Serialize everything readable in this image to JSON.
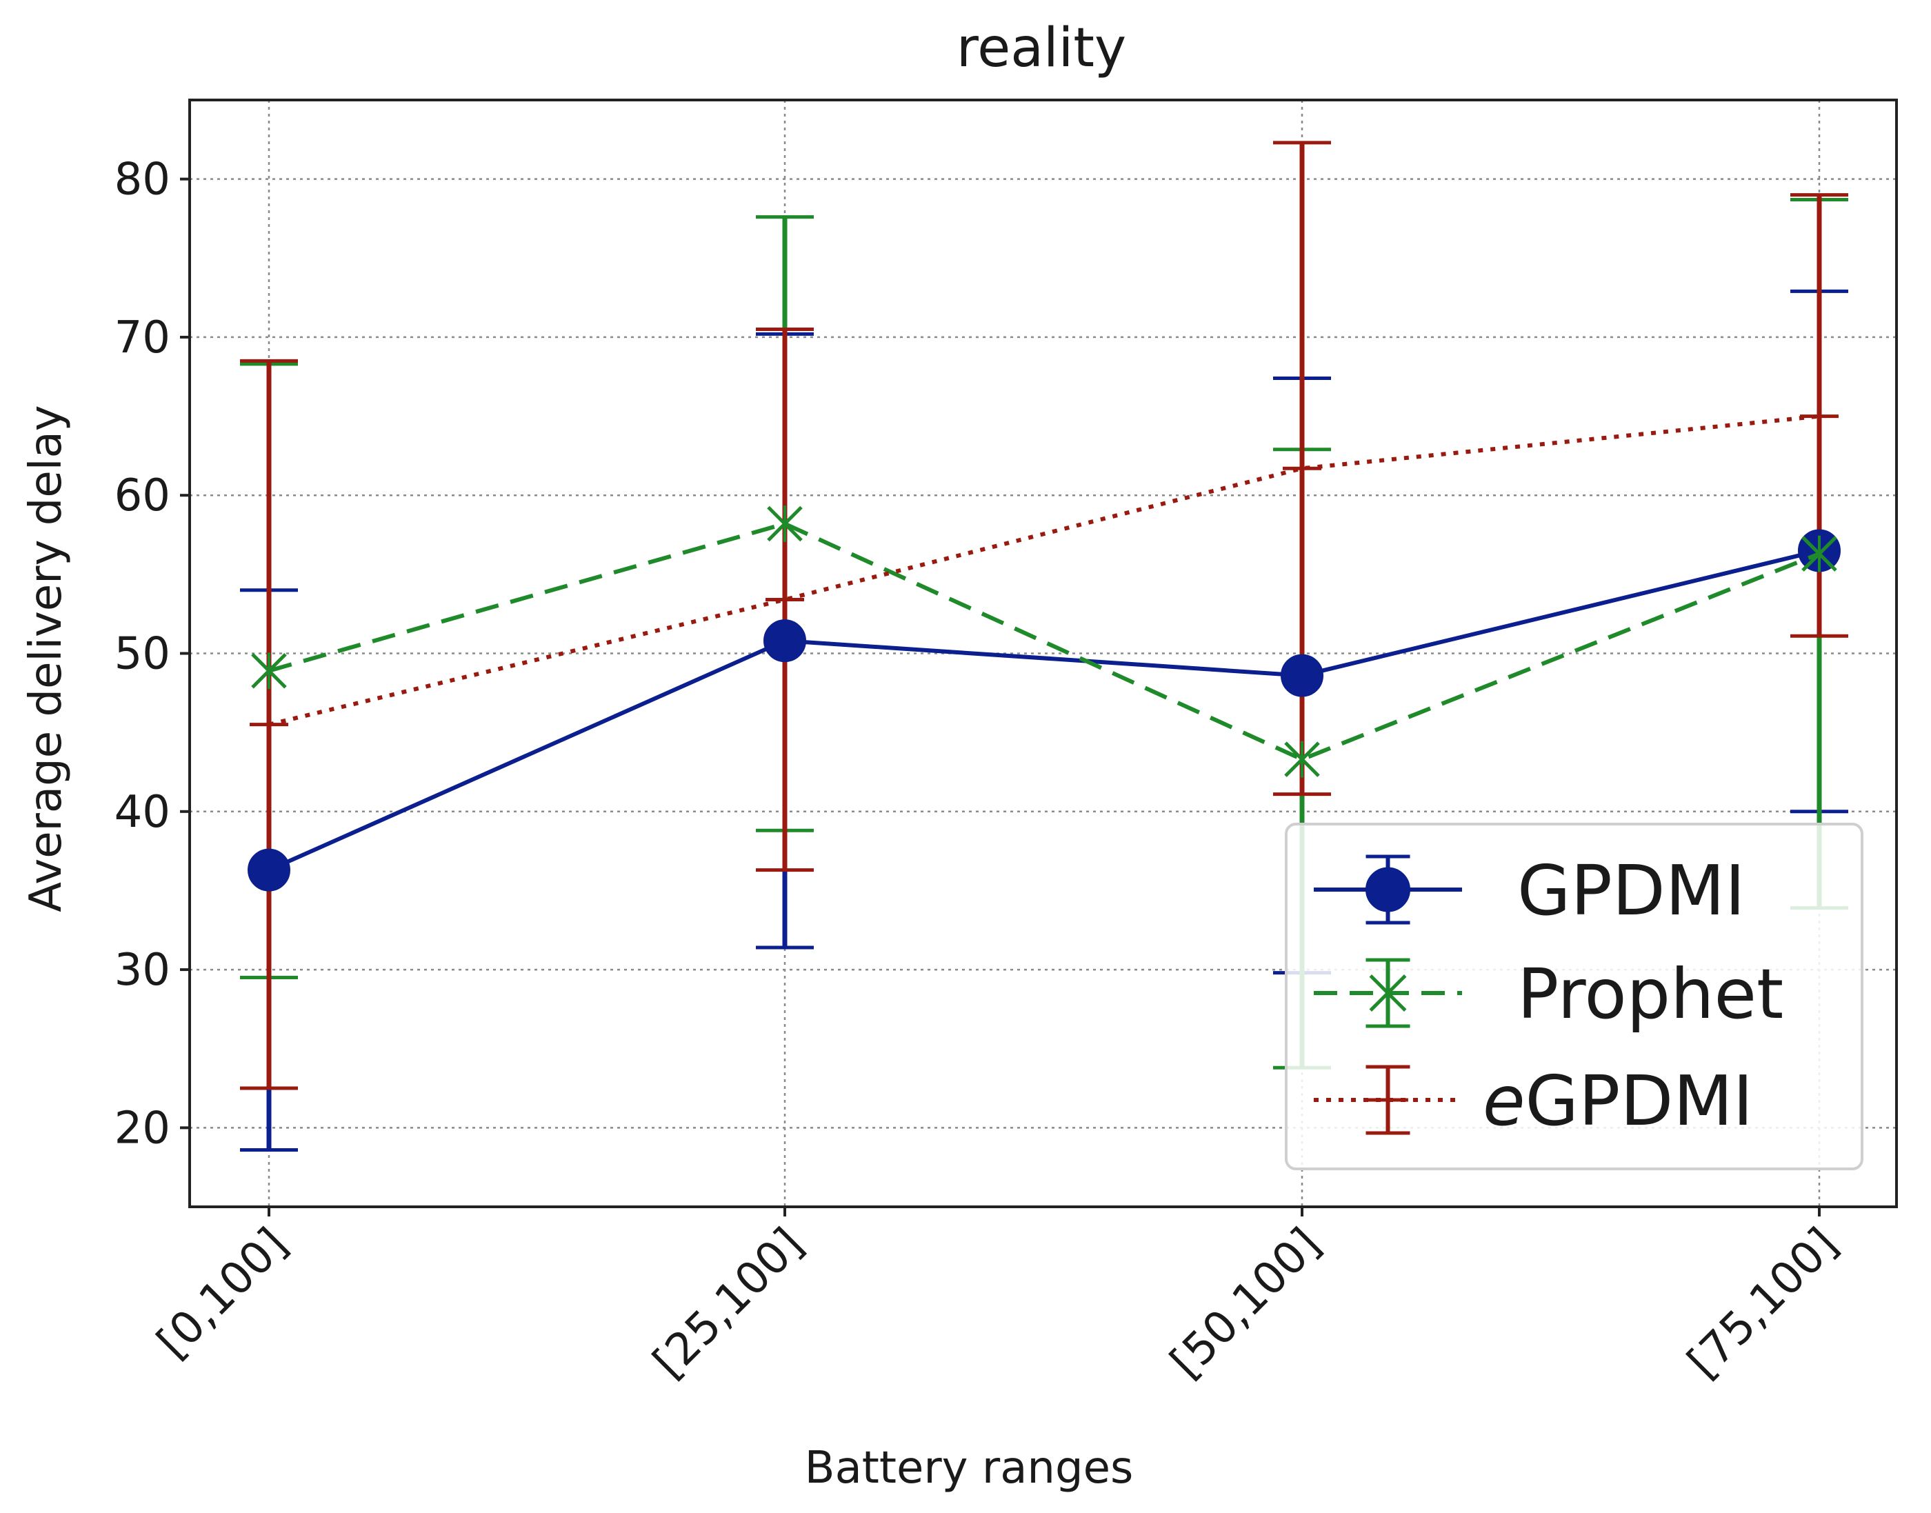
{
  "chart_data": {
    "type": "line",
    "title": "reality",
    "xlabel": "Battery ranges",
    "ylabel": "Average delivery delay",
    "categories": [
      "[0,100]",
      "[25,100]",
      "[50,100]",
      "[75,100]"
    ],
    "ylim": [
      15,
      85
    ],
    "yticks": [
      20,
      30,
      40,
      50,
      60,
      70,
      80
    ],
    "grid": true,
    "legend_position": "bottom-right",
    "series": [
      {
        "name": "GPDMI",
        "name_prefix": "",
        "name_main": "GPDMI",
        "color": "#0b1f8f",
        "linestyle": "solid",
        "marker": "circle",
        "values": [
          36.3,
          50.8,
          48.6,
          56.5
        ],
        "err_low": [
          18.6,
          31.4,
          29.8,
          40.0
        ],
        "err_high": [
          54.0,
          70.2,
          67.4,
          72.9
        ]
      },
      {
        "name": "Prophet",
        "name_prefix": "",
        "name_main": "Prophet",
        "color": "#1e8a2a",
        "linestyle": "dashed",
        "marker": "x",
        "values": [
          48.9,
          58.2,
          43.3,
          56.3
        ],
        "err_low": [
          29.5,
          38.8,
          23.8,
          33.9
        ],
        "err_high": [
          68.3,
          77.6,
          62.9,
          78.7
        ]
      },
      {
        "name": "eGPDMI",
        "name_prefix": "e",
        "name_main": "GPDMI",
        "color": "#9a1a10",
        "linestyle": "dotted",
        "marker": "plus",
        "values": [
          45.5,
          53.4,
          61.7,
          65.0
        ],
        "err_low": [
          22.5,
          36.3,
          41.1,
          51.1
        ],
        "err_high": [
          68.5,
          70.5,
          82.3,
          79.0
        ]
      }
    ]
  }
}
